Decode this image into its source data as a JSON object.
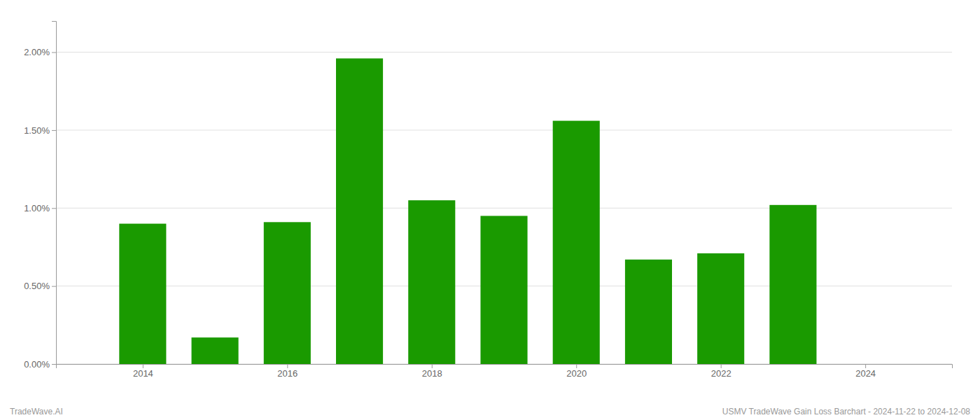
{
  "chart_data": {
    "type": "bar",
    "x": [
      2014,
      2015,
      2016,
      2017,
      2018,
      2019,
      2020,
      2021,
      2022,
      2023
    ],
    "values": [
      0.009,
      0.0017,
      0.0091,
      0.0196,
      0.0105,
      0.0095,
      0.0156,
      0.0067,
      0.0071,
      0.0102
    ],
    "color": "#1a9a00",
    "xlim": [
      2012.8,
      2025.2
    ],
    "xticks": [
      2014,
      2016,
      2018,
      2020,
      2022,
      2024
    ],
    "ylim": [
      0.0,
      0.022
    ],
    "yticks": [
      {
        "value": 0.0,
        "label": "0.00%"
      },
      {
        "value": 0.005,
        "label": "0.50%"
      },
      {
        "value": 0.01,
        "label": "1.00%"
      },
      {
        "value": 0.015,
        "label": "1.50%"
      },
      {
        "value": 0.02,
        "label": "2.00%"
      }
    ],
    "grid": true,
    "annotations": [
      "TradeWave.AI",
      "USMV TradeWave Gain Loss Barchart - 2024-11-22 to 2024-12-08"
    ]
  }
}
